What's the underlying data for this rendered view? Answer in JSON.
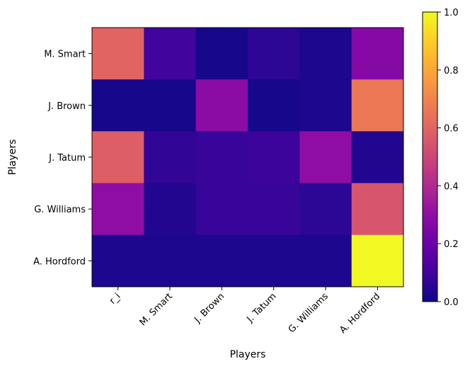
{
  "chart_data": {
    "type": "heatmap",
    "title": "",
    "xlabel": "Players",
    "ylabel": "Players",
    "x_categories": [
      "r_i",
      "M. Smart",
      "J. Brown",
      "J. Tatum",
      "G. Williams",
      "A. Hordford"
    ],
    "y_categories": [
      "M. Smart",
      "J. Brown",
      "J. Tatum",
      "G. Williams",
      "A. Hordford"
    ],
    "values": [
      [
        0.6,
        0.1,
        0.02,
        0.06,
        0.03,
        0.27
      ],
      [
        0.02,
        0.02,
        0.29,
        0.02,
        0.03,
        0.66
      ],
      [
        0.58,
        0.07,
        0.08,
        0.09,
        0.3,
        0.04
      ],
      [
        0.3,
        0.04,
        0.08,
        0.08,
        0.06,
        0.55
      ],
      [
        0.03,
        0.03,
        0.03,
        0.03,
        0.03,
        1.0
      ]
    ],
    "colormap": "plasma",
    "colorbar": {
      "range": [
        0.0,
        1.0
      ],
      "ticks": [
        "0.0",
        "0.2",
        "0.4",
        "0.6",
        "0.8",
        "1.0"
      ]
    },
    "xtick_rotation_deg": -45,
    "grid": false
  }
}
